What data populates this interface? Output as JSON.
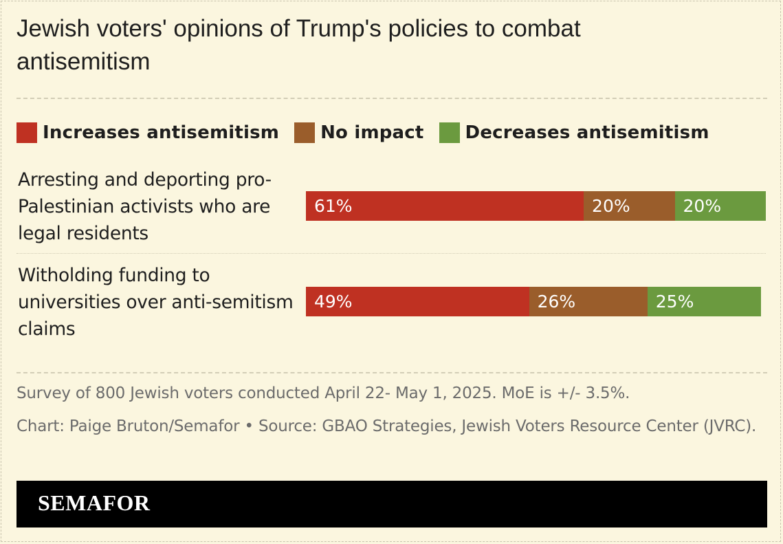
{
  "title": "Jewish voters' opinions of Trump's policies to combat antisemitism",
  "legend": [
    {
      "label": "Increases antisemitism",
      "color": "#bf3122"
    },
    {
      "label": "No impact",
      "color": "#9a5d2b"
    },
    {
      "label": "Decreases antisemitism",
      "color": "#6b9a3f"
    }
  ],
  "chart_data": {
    "type": "bar",
    "orientation": "horizontal",
    "stacked": true,
    "title": "Jewish voters' opinions of Trump's policies to combat antisemitism",
    "categories": [
      "Arresting and deporting pro-Palestinian activists who are legal residents",
      "Witholding funding to universities over anti-semitism claims"
    ],
    "series": [
      {
        "name": "Increases antisemitism",
        "values": [
          61,
          49
        ],
        "labels": [
          "61%",
          "49%"
        ],
        "color": "#bf3122"
      },
      {
        "name": "No impact",
        "values": [
          20,
          26
        ],
        "labels": [
          "20%",
          "26%"
        ],
        "color": "#9a5d2b"
      },
      {
        "name": "Decreases antisemitism",
        "values": [
          20,
          25
        ],
        "labels": [
          "20%",
          "25%"
        ],
        "color": "#6b9a3f"
      }
    ],
    "xlim": [
      0,
      101
    ],
    "legend_position": "top"
  },
  "rows": [
    {
      "label_lines": [
        "Arresting and deporting pro-",
        "Palestinian activists who are",
        "legal residents"
      ]
    },
    {
      "label_lines": [
        "Witholding funding to",
        "universities over anti-semitism",
        "claims"
      ]
    }
  ],
  "notes": {
    "survey": "Survey of 800 Jewish voters conducted April 22- May 1, 2025. MoE is +/- 3.5%.",
    "credit": "Chart: Paige Bruton/Semafor • Source: GBAO Strategies, Jewish Voters Resource Center (JVRC)."
  },
  "footer": {
    "logo": "SEMAFOR"
  }
}
